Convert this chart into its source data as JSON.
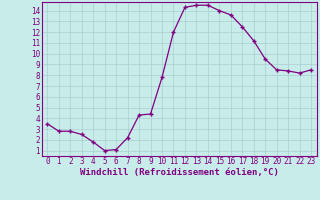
{
  "x": [
    0,
    1,
    2,
    3,
    4,
    5,
    6,
    7,
    8,
    9,
    10,
    11,
    12,
    13,
    14,
    15,
    16,
    17,
    18,
    19,
    20,
    21,
    22,
    23
  ],
  "y": [
    3.5,
    2.8,
    2.8,
    2.5,
    1.8,
    1.0,
    1.1,
    2.2,
    4.3,
    4.4,
    7.8,
    12.0,
    14.3,
    14.5,
    14.5,
    14.0,
    13.6,
    12.5,
    11.2,
    9.5,
    8.5,
    8.4,
    8.2,
    8.5
  ],
  "color": "#800080",
  "bg_color": "#c8ecea",
  "grid_color": "#a8cece",
  "xlabel": "Windchill (Refroidissement éolien,°C)",
  "xlim": [
    -0.5,
    23.5
  ],
  "ylim": [
    0.5,
    14.8
  ],
  "xticks": [
    0,
    1,
    2,
    3,
    4,
    5,
    6,
    7,
    8,
    9,
    10,
    11,
    12,
    13,
    14,
    15,
    16,
    17,
    18,
    19,
    20,
    21,
    22,
    23
  ],
  "yticks": [
    1,
    2,
    3,
    4,
    5,
    6,
    7,
    8,
    9,
    10,
    11,
    12,
    13,
    14
  ],
  "tick_fontsize": 5.5,
  "xlabel_fontsize": 6.5,
  "marker": "+",
  "markersize": 3.5,
  "linewidth": 0.9
}
